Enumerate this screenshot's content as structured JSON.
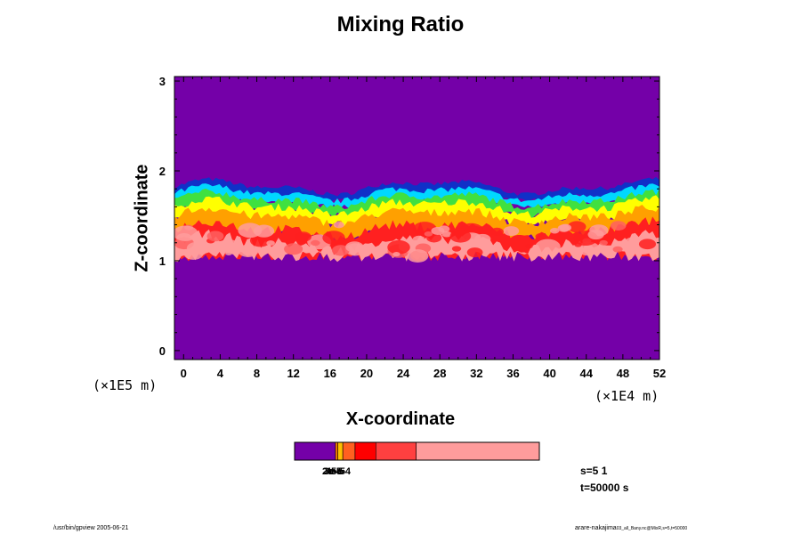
{
  "chart_data": {
    "type": "heatmap",
    "title": "Mixing Ratio",
    "xlabel": "X-coordinate",
    "ylabel": "Z-coordinate",
    "x_unit": "(×1E4 m)",
    "y_unit": "(×1E5 m)",
    "xlim": [
      -1,
      52
    ],
    "ylim": [
      -0.1,
      3.05
    ],
    "x_ticks": [
      0,
      4,
      8,
      12,
      16,
      20,
      24,
      28,
      32,
      36,
      40,
      44,
      48,
      52
    ],
    "y_ticks": [
      0,
      1,
      2,
      3
    ],
    "x_tick_labels": [
      "0",
      "4",
      "8",
      "12",
      "16",
      "20",
      "24",
      "28",
      "32",
      "36",
      "40",
      "44",
      "48",
      "52"
    ],
    "y_tick_labels": [
      "0",
      "1",
      "2",
      "3"
    ],
    "background_color": "#7400a8",
    "layer": {
      "bottom_z": 1.0,
      "top_z_min": 1.7,
      "top_z_max": 1.85,
      "bands": [
        {
          "color": "#1030c8",
          "z_from": 1.72,
          "z_to": 1.82
        },
        {
          "color": "#00d8ff",
          "z_from": 1.65,
          "z_to": 1.75
        },
        {
          "color": "#40e040",
          "z_from": 1.55,
          "z_to": 1.68
        },
        {
          "color": "#ffff00",
          "z_from": 1.45,
          "z_to": 1.6
        },
        {
          "color": "#ffa000",
          "z_from": 1.3,
          "z_to": 1.5
        },
        {
          "color": "#ff2020",
          "z_from": 1.05,
          "z_to": 1.35
        },
        {
          "color": "#ff9c9c",
          "z_from": 1.05,
          "z_to": 1.2
        }
      ]
    },
    "colorbar": {
      "colors": [
        "#7400a8",
        "#ff8000",
        "#ffc000",
        "#ff6020",
        "#ff0000",
        "#ff4040",
        "#ff9c9c"
      ],
      "widths": [
        0.167,
        0.01,
        0.02,
        0.05,
        0.085,
        0.165,
        0.503
      ],
      "labels": [
        "2e-5",
        "3e-5",
        "4e-5",
        "5e-4"
      ]
    }
  },
  "info": {
    "s_label": "s=5 1",
    "t_label": "t=50000 s"
  },
  "footer": {
    "left": "/usr/bin/gpview 2005-06-21",
    "right_main": "arare-nakajima",
    "right_small": "03_all_Bany.nc@MixR,s=5,t=50000"
  },
  "colors": {
    "frame": "#000000",
    "background": "#ffffff"
  }
}
